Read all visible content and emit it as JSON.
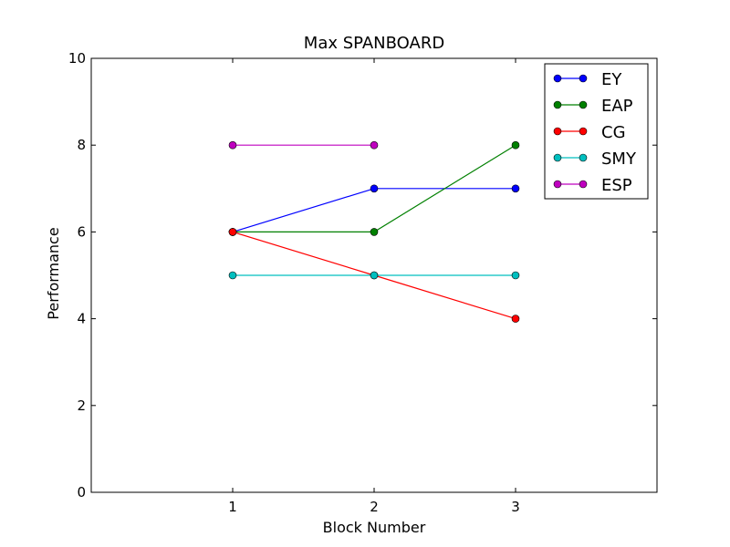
{
  "chart_data": {
    "type": "line",
    "title": "Max SPANBOARD",
    "xlabel": "Block Number",
    "ylabel": "Performance",
    "xlim": [
      0,
      4
    ],
    "ylim": [
      0,
      10
    ],
    "xticks": [
      1,
      2,
      3
    ],
    "yticks": [
      0,
      2,
      4,
      6,
      8,
      10
    ],
    "grid": false,
    "legend_position": "top-right",
    "series": [
      {
        "name": "EY",
        "color": "#0000ff",
        "x": [
          1,
          2,
          3
        ],
        "y": [
          6,
          7,
          7
        ]
      },
      {
        "name": "EAP",
        "color": "#008000",
        "x": [
          1,
          2,
          3
        ],
        "y": [
          6,
          6,
          8
        ]
      },
      {
        "name": "CG",
        "color": "#ff0000",
        "x": [
          1,
          2,
          3
        ],
        "y": [
          6,
          5,
          4
        ]
      },
      {
        "name": "SMY",
        "color": "#00bfbf",
        "x": [
          1,
          2,
          3
        ],
        "y": [
          5,
          5,
          5
        ]
      },
      {
        "name": "ESP",
        "color": "#bf00bf",
        "x": [
          1,
          2
        ],
        "y": [
          8,
          8
        ]
      }
    ]
  }
}
